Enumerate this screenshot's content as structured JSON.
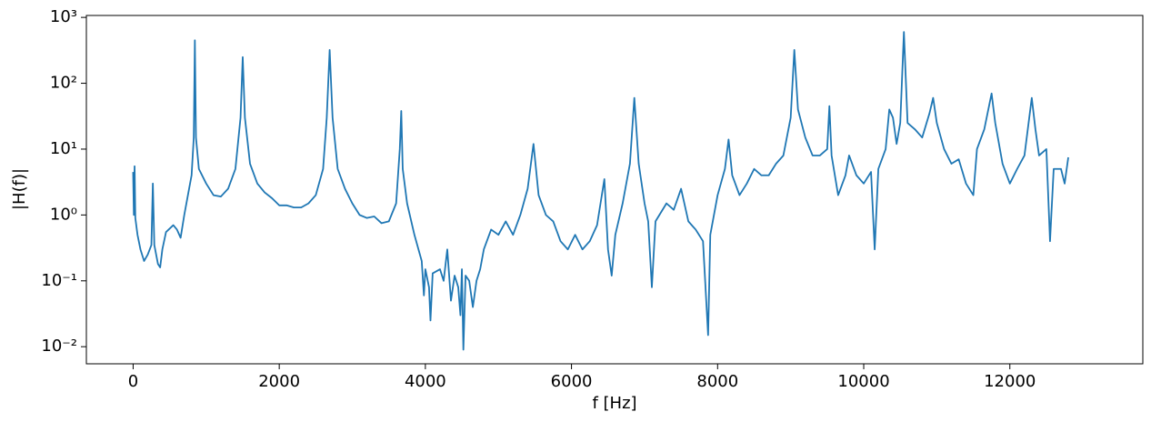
{
  "chart_data": {
    "type": "line",
    "xlabel": "f [Hz]",
    "ylabel": "|H(f)|",
    "log_y": true,
    "xlim": [
      -640,
      13820
    ],
    "ylim": [
      0.0055,
      1070
    ],
    "xticks": [
      0,
      2000,
      4000,
      6000,
      8000,
      10000,
      12000
    ],
    "yticks": [
      {
        "value": 0.01,
        "label": "10⁻²"
      },
      {
        "value": 0.1,
        "label": "10⁻¹"
      },
      {
        "value": 1,
        "label": "10⁰"
      },
      {
        "value": 10,
        "label": "10¹"
      },
      {
        "value": 100,
        "label": "10²"
      },
      {
        "value": 1000,
        "label": "10³"
      }
    ],
    "x": [
      0,
      10,
      20,
      30,
      60,
      100,
      150,
      200,
      250,
      270,
      290,
      340,
      370,
      400,
      450,
      550,
      600,
      650,
      700,
      750,
      800,
      830,
      845,
      860,
      900,
      1000,
      1100,
      1200,
      1300,
      1400,
      1470,
      1500,
      1530,
      1600,
      1700,
      1800,
      1900,
      2000,
      2100,
      2200,
      2300,
      2400,
      2500,
      2600,
      2650,
      2690,
      2730,
      2800,
      2900,
      3000,
      3100,
      3200,
      3300,
      3400,
      3500,
      3600,
      3650,
      3670,
      3690,
      3750,
      3850,
      3950,
      3980,
      4000,
      4050,
      4070,
      4100,
      4200,
      4250,
      4300,
      4350,
      4400,
      4450,
      4480,
      4500,
      4520,
      4550,
      4600,
      4650,
      4700,
      4750,
      4800,
      4900,
      5000,
      5100,
      5200,
      5300,
      5400,
      5480,
      5550,
      5650,
      5750,
      5850,
      5950,
      6050,
      6150,
      6250,
      6350,
      6450,
      6500,
      6550,
      6600,
      6700,
      6800,
      6860,
      6920,
      7000,
      7050,
      7100,
      7150,
      7300,
      7400,
      7500,
      7600,
      7700,
      7800,
      7870,
      7900,
      8000,
      8100,
      8150,
      8200,
      8300,
      8400,
      8500,
      8600,
      8700,
      8800,
      8900,
      9000,
      9050,
      9100,
      9200,
      9300,
      9400,
      9500,
      9530,
      9560,
      9650,
      9750,
      9800,
      9900,
      10000,
      10100,
      10150,
      10200,
      10300,
      10350,
      10400,
      10450,
      10500,
      10550,
      10600,
      10700,
      10800,
      10900,
      10950,
      11000,
      11100,
      11200,
      11300,
      11400,
      11500,
      11550,
      11650,
      11750,
      11800,
      11900,
      12000,
      12100,
      12200,
      12300,
      12350,
      12400,
      12500,
      12550,
      12600,
      12700,
      12750,
      12800
    ],
    "series": [
      {
        "color": "#1f77b4",
        "values": [
          4.5,
          1.0,
          5.5,
          0.9,
          0.5,
          0.3,
          0.2,
          0.25,
          0.35,
          3.0,
          0.35,
          0.18,
          0.16,
          0.3,
          0.55,
          0.7,
          0.6,
          0.45,
          1.0,
          2.0,
          4,
          15,
          450,
          15,
          5,
          3,
          2,
          1.9,
          2.5,
          5,
          30,
          250,
          30,
          6,
          3,
          2.2,
          1.8,
          1.4,
          1.4,
          1.3,
          1.3,
          1.5,
          2,
          5,
          30,
          320,
          30,
          5,
          2.5,
          1.5,
          1.0,
          0.9,
          0.95,
          0.75,
          0.8,
          1.5,
          10,
          38,
          5,
          1.5,
          0.5,
          0.2,
          0.06,
          0.15,
          0.08,
          0.025,
          0.13,
          0.15,
          0.1,
          0.3,
          0.05,
          0.12,
          0.08,
          0.03,
          0.15,
          0.009,
          0.12,
          0.1,
          0.04,
          0.1,
          0.15,
          0.3,
          0.6,
          0.5,
          0.8,
          0.5,
          1.0,
          2.5,
          12,
          2,
          1,
          0.8,
          0.4,
          0.3,
          0.5,
          0.3,
          0.4,
          0.7,
          3.5,
          0.3,
          0.12,
          0.5,
          1.5,
          6,
          60,
          6,
          1.5,
          0.8,
          0.08,
          0.8,
          1.5,
          1.2,
          2.5,
          0.8,
          0.6,
          0.4,
          0.015,
          0.5,
          2,
          5,
          14,
          4,
          2,
          3,
          5,
          4,
          4,
          6,
          8,
          30,
          320,
          40,
          15,
          8,
          8,
          10,
          45,
          8,
          2,
          4,
          8,
          4,
          3,
          4.5,
          0.3,
          5,
          10,
          40,
          30,
          12,
          25,
          600,
          25,
          20,
          15,
          35,
          60,
          25,
          10,
          6,
          7,
          3,
          2,
          10,
          20,
          70,
          25,
          6,
          3,
          5,
          8,
          60,
          20,
          8,
          10,
          0.4,
          5,
          5,
          3,
          7.5
        ]
      }
    ]
  }
}
